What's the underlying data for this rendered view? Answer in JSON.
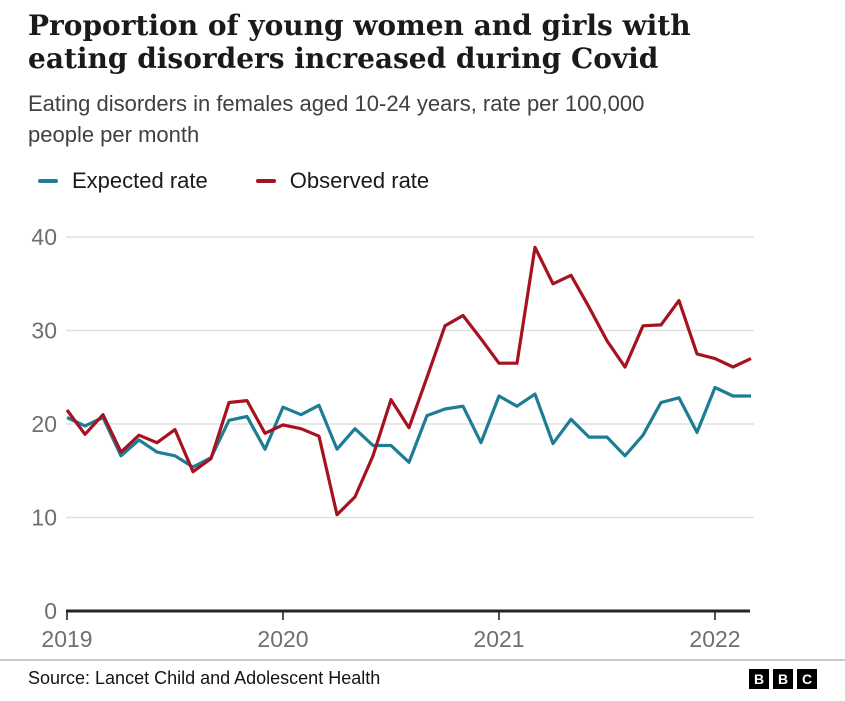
{
  "header": {
    "title": "Proportion of young women and girls with eating disorders increased during Covid",
    "subtitle": "Eating disorders in females aged 10-24 years, rate per 100,000 people per month"
  },
  "legend": [
    {
      "label": "Expected rate",
      "color": "#1D7D95"
    },
    {
      "label": "Observed rate",
      "color": "#A6121F"
    }
  ],
  "chart_data": {
    "type": "line",
    "title": "Proportion of young women and girls with eating disorders increased during Covid",
    "ylabel": "Rate per 100,000 people per month",
    "xlabel": "",
    "ylim": [
      0,
      40
    ],
    "yticks": [
      0,
      10,
      20,
      30,
      40
    ],
    "xticks": [
      "2019",
      "2020",
      "2021",
      "2022"
    ],
    "grid": "horizontal",
    "legend_position": "top",
    "categories": [
      "2019-01",
      "2019-02",
      "2019-03",
      "2019-04",
      "2019-05",
      "2019-06",
      "2019-07",
      "2019-08",
      "2019-09",
      "2019-10",
      "2019-11",
      "2019-12",
      "2020-01",
      "2020-02",
      "2020-03",
      "2020-04",
      "2020-05",
      "2020-06",
      "2020-07",
      "2020-08",
      "2020-09",
      "2020-10",
      "2020-11",
      "2020-12",
      "2021-01",
      "2021-02",
      "2021-03",
      "2021-04",
      "2021-05",
      "2021-06",
      "2021-07",
      "2021-08",
      "2021-09",
      "2021-10",
      "2021-11",
      "2021-12",
      "2022-01",
      "2022-02",
      "2022-03"
    ],
    "series": [
      {
        "name": "Expected rate",
        "color": "#1D7D95",
        "values": [
          20.7,
          19.8,
          20.7,
          16.6,
          18.3,
          17.0,
          16.6,
          15.4,
          16.4,
          20.4,
          20.8,
          17.3,
          21.8,
          21.0,
          22.0,
          17.3,
          19.5,
          17.7,
          17.7,
          15.9,
          20.9,
          21.6,
          21.9,
          18.0,
          23.0,
          21.9,
          23.2,
          17.9,
          20.5,
          18.6,
          18.6,
          16.6,
          18.8,
          22.3,
          22.8,
          19.1,
          23.9,
          23.0,
          23.0
        ]
      },
      {
        "name": "Observed rate",
        "color": "#A6121F",
        "values": [
          21.5,
          18.9,
          21.0,
          17.0,
          18.8,
          18.0,
          19.4,
          14.9,
          16.3,
          22.3,
          22.5,
          19.0,
          19.9,
          19.5,
          18.7,
          10.3,
          12.2,
          16.6,
          22.6,
          19.6,
          25.0,
          30.5,
          31.6,
          29.1,
          26.5,
          26.5,
          38.9,
          35.0,
          35.9,
          32.5,
          28.9,
          26.1,
          30.5,
          30.6,
          33.2,
          27.5,
          27.0,
          26.1,
          27.0
        ]
      }
    ]
  },
  "colors": {
    "expected": "#1D7D95",
    "observed": "#A6121F",
    "gridline": "#e1e1e1",
    "axis": "#262626",
    "tick_label": "#6f6f6f"
  },
  "footer": {
    "source": "Source: Lancet Child and Adolescent Health",
    "logo_letters": [
      "B",
      "B",
      "C"
    ]
  }
}
